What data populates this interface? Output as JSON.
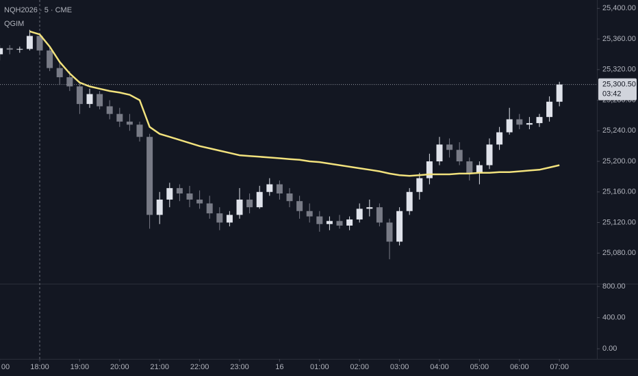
{
  "chart_data": {
    "type": "candlestick",
    "title": "NQH2026 · 5 · CME",
    "subtitle": "QGIM",
    "x": [
      "17:00",
      "17:15",
      "17:30",
      "17:45",
      "18:00",
      "18:15",
      "18:30",
      "18:45",
      "19:00",
      "19:15",
      "19:30",
      "19:45",
      "20:00",
      "20:15",
      "20:30",
      "20:45",
      "21:00",
      "21:15",
      "21:30",
      "21:45",
      "22:00",
      "22:15",
      "22:30",
      "22:45",
      "23:00",
      "23:15",
      "23:30",
      "23:45",
      "00:00",
      "00:15",
      "00:30",
      "00:45",
      "01:00",
      "01:15",
      "01:30",
      "01:45",
      "02:00",
      "02:15",
      "02:30",
      "02:45",
      "03:00",
      "03:15",
      "03:30",
      "03:45",
      "04:00",
      "04:15",
      "04:30",
      "04:45",
      "05:00",
      "05:15",
      "05:30",
      "05:45",
      "06:00",
      "06:15",
      "06:30",
      "06:45",
      "07:00"
    ],
    "open": [
      25340,
      25348,
      25346,
      25347,
      25364,
      25345,
      25322,
      25310,
      25298,
      25275,
      25288,
      25272,
      25262,
      25252,
      25248,
      25232,
      25130,
      25150,
      25165,
      25158,
      25150,
      25145,
      25132,
      25120,
      25130,
      25150,
      25140,
      25160,
      25170,
      25158,
      25148,
      25135,
      25128,
      25118,
      25122,
      25116,
      25124,
      25138,
      25140,
      25120,
      25095,
      25135,
      25160,
      25178,
      25200,
      25222,
      25215,
      25200,
      25185,
      25195,
      25222,
      25238,
      25255,
      25248,
      25250,
      25258,
      25278
    ],
    "high": [
      25352,
      25352,
      25350,
      25372,
      25368,
      25350,
      25330,
      25318,
      25305,
      25295,
      25292,
      25280,
      25270,
      25262,
      25252,
      25236,
      25160,
      25172,
      25170,
      25168,
      25162,
      25155,
      25140,
      25135,
      25165,
      25158,
      25168,
      25178,
      25175,
      25165,
      25155,
      25145,
      25135,
      25128,
      25130,
      25128,
      25145,
      25150,
      25145,
      25125,
      25140,
      25165,
      25185,
      25210,
      25232,
      25230,
      25225,
      25205,
      25200,
      25230,
      25245,
      25270,
      25262,
      25258,
      25262,
      25285,
      25304
    ],
    "low": [
      25332,
      25340,
      25342,
      25345,
      25340,
      25318,
      25300,
      25292,
      25262,
      25270,
      25268,
      25255,
      25245,
      25240,
      25226,
      25112,
      25118,
      25140,
      25148,
      25140,
      25138,
      25125,
      25110,
      25115,
      25125,
      25132,
      25138,
      25155,
      25150,
      25140,
      25125,
      25120,
      25108,
      25110,
      25112,
      25110,
      25120,
      25128,
      25115,
      25072,
      25090,
      25130,
      25150,
      25170,
      25195,
      25205,
      25195,
      25175,
      25170,
      25190,
      25215,
      25235,
      25242,
      25242,
      25245,
      25252,
      25272
    ],
    "close": [
      25348,
      25346,
      25347,
      25364,
      25345,
      25322,
      25310,
      25298,
      25275,
      25288,
      25272,
      25262,
      25252,
      25248,
      25232,
      25130,
      25150,
      25165,
      25158,
      25150,
      25145,
      25132,
      25120,
      25130,
      25150,
      25140,
      25160,
      25170,
      25158,
      25148,
      25135,
      25128,
      25118,
      25122,
      25116,
      25124,
      25138,
      25140,
      25120,
      25095,
      25135,
      25160,
      25178,
      25200,
      25222,
      25215,
      25200,
      25185,
      25195,
      25222,
      25238,
      25255,
      25248,
      25250,
      25258,
      25278,
      25300.5
    ],
    "up_color": "#e0e3eb",
    "down_color": "#787b86",
    "overlay": {
      "color": "#f2e27d",
      "values": [
        null,
        null,
        null,
        25370,
        25366,
        25350,
        25330,
        25315,
        25303,
        25298,
        25295,
        25292,
        25290,
        25287,
        25280,
        25245,
        25236,
        25232,
        25228,
        25224,
        25220,
        25217,
        25214,
        25211,
        25208,
        25207,
        25206,
        25205,
        25204,
        25203,
        25202,
        25200,
        25199,
        25197,
        25195,
        25193,
        25191,
        25189,
        25187,
        25184,
        25182,
        25181,
        25182,
        25183,
        25183,
        25183,
        25184,
        25184,
        25185,
        25185,
        25186,
        25186,
        25187,
        25188,
        25189,
        25192,
        25195
      ]
    },
    "ylim": [
      25040,
      25411
    ],
    "yticks": [
      {
        "value": 25080,
        "label": "25,080.00"
      },
      {
        "value": 25120,
        "label": "25,120.00"
      },
      {
        "value": 25160,
        "label": "25,160.00"
      },
      {
        "value": 25200,
        "label": "25,200.00"
      },
      {
        "value": 25240,
        "label": "25,240.00"
      },
      {
        "value": 25280,
        "label": "25,280.00"
      },
      {
        "value": 25320,
        "label": "25,320.00"
      },
      {
        "value": 25360,
        "label": "25,360.00"
      },
      {
        "value": 25400,
        "label": "25,400.00"
      }
    ],
    "last_price": {
      "value": 25300.5,
      "label": "25,300.50"
    },
    "countdown": "03:42",
    "xticks": [
      {
        "value": "17:00",
        "label": "00"
      },
      "18:00",
      "19:00",
      "20:00",
      "21:00",
      "22:00",
      "23:00",
      {
        "value": "00:00",
        "label": "16"
      },
      "01:00",
      "02:00",
      "03:00",
      "04:00",
      "05:00",
      "06:00",
      "07:00"
    ],
    "panel2": {
      "ylim": [
        -130,
        826
      ],
      "yticks": [
        {
          "value": 0,
          "label": "0.00"
        },
        {
          "value": 400,
          "label": "400.00"
        },
        {
          "value": 800,
          "label": "800.00"
        }
      ]
    }
  }
}
